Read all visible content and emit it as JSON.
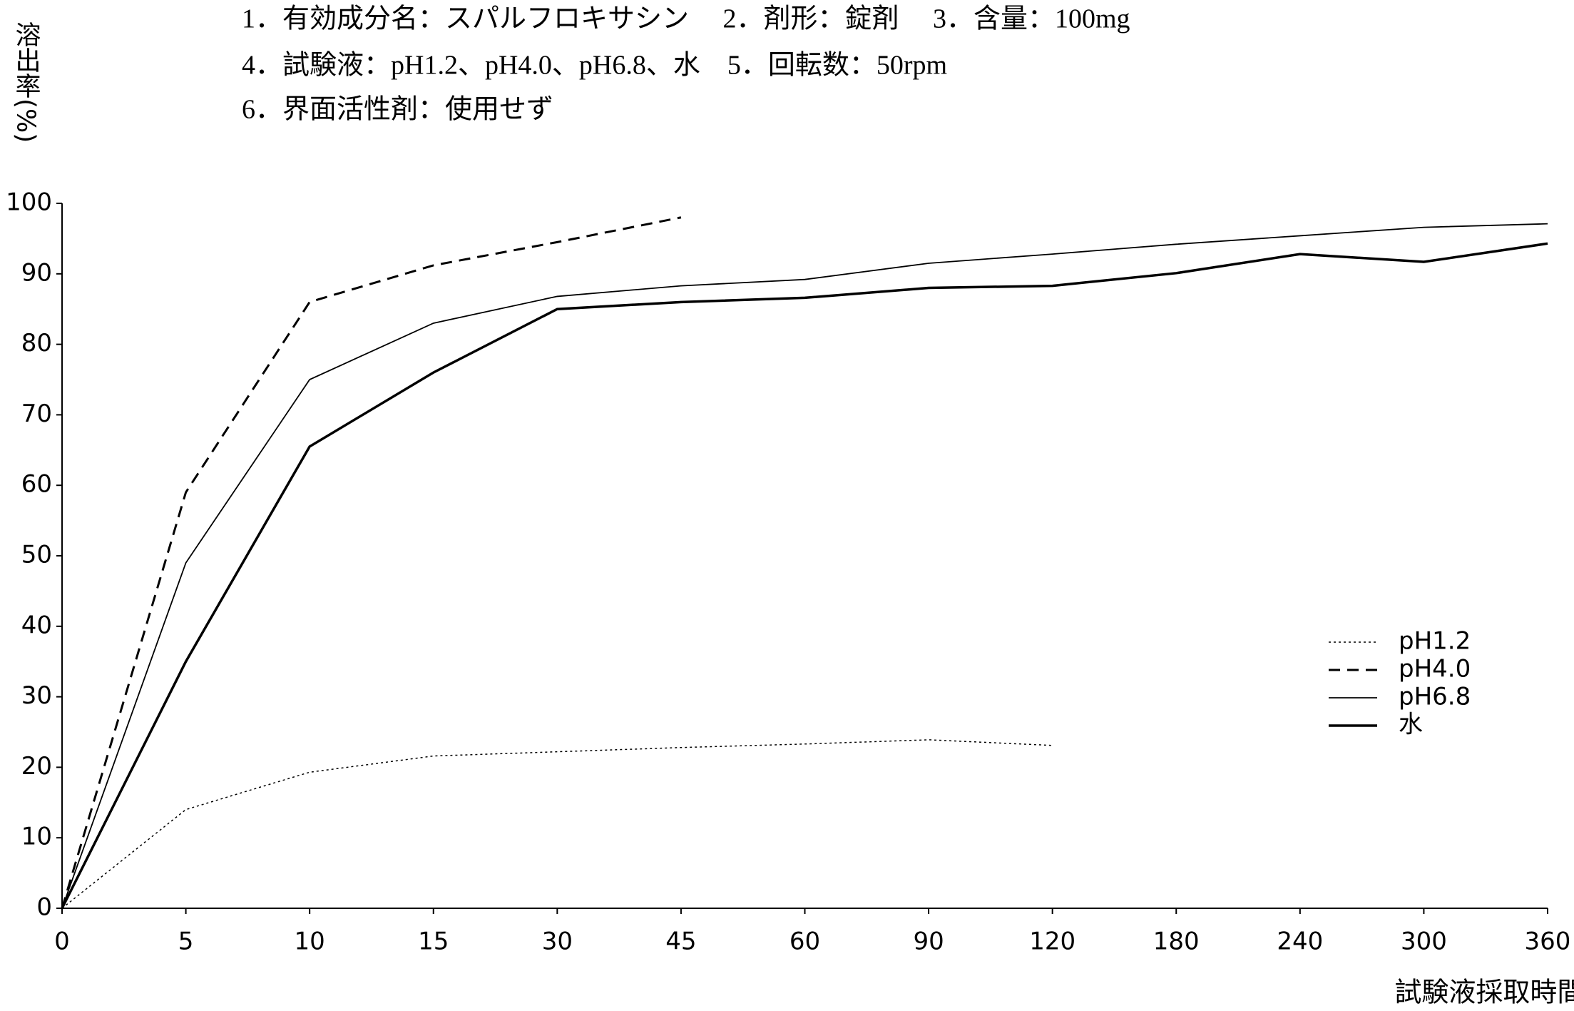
{
  "chart_data": {
    "type": "line",
    "title_lines": [
      "1．有効成分名：スパルフロキサシン　 2．剤形：錠剤　 3．含量：100mg",
      "4．試験液：pH1.2、pH4.0、pH6.8、水　5．回転数：50rpm",
      "6．界面活性剤：使用せず"
    ],
    "y_label": "溶出率(%)",
    "x_label": "試験液採取時間(分)",
    "categories": [
      "0",
      "5",
      "10",
      "15",
      "30",
      "45",
      "60",
      "90",
      "120",
      "180",
      "240",
      "300",
      "360"
    ],
    "series": [
      {
        "name": "pH1.2",
        "color": "#000000",
        "style": "dotted",
        "width": 1.5,
        "values": [
          0,
          14,
          19.3,
          21.6,
          22.2,
          22.8,
          23.3,
          23.9,
          23.1,
          null,
          null,
          null,
          null
        ]
      },
      {
        "name": "pH4.0",
        "color": "#000000",
        "style": "dashed",
        "width": 3,
        "values": [
          0,
          59,
          86,
          91.2,
          94.5,
          98,
          null,
          null,
          null,
          null,
          null,
          null,
          null
        ]
      },
      {
        "name": "pH6.8",
        "color": "#000000",
        "style": "solid",
        "width": 1.8,
        "values": [
          0,
          49,
          75,
          83,
          86.8,
          88.3,
          89.2,
          91.5,
          92.8,
          94.2,
          95.4,
          96.6,
          97.1
        ]
      },
      {
        "name": "水",
        "color": "#000000",
        "style": "solid",
        "width": 3.5,
        "values": [
          0,
          35,
          65.5,
          76,
          85,
          86,
          86.6,
          88,
          88.3,
          90.1,
          92.8,
          91.7,
          94.3
        ]
      }
    ],
    "ylim": [
      0,
      100
    ],
    "yticks": [
      0,
      10,
      20,
      30,
      40,
      50,
      60,
      70,
      80,
      90,
      100
    ],
    "grid": false,
    "legend": "lower right"
  }
}
